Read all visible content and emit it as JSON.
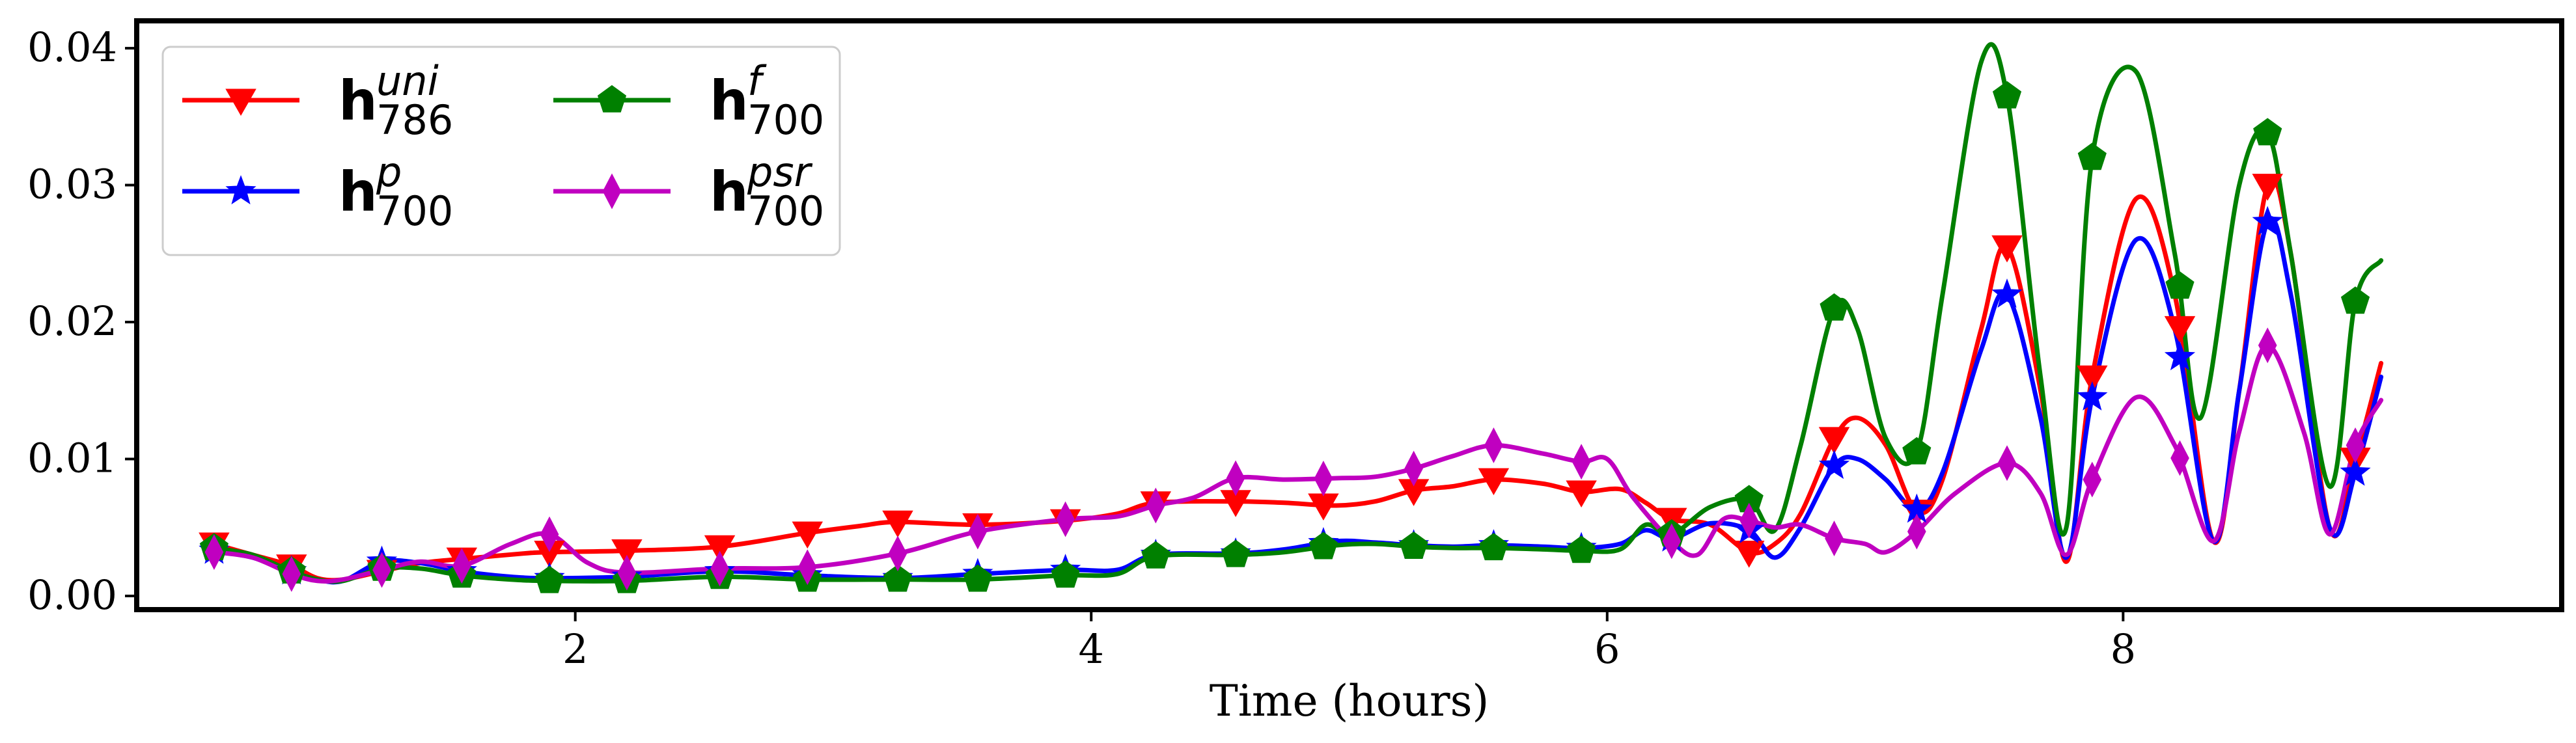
{
  "chart_data": {
    "type": "line",
    "title": "",
    "xlabel": "Time (hours)",
    "ylabel": "",
    "xlim": [
      0.3,
      9.7
    ],
    "ylim": [
      -0.001,
      0.042
    ],
    "xticks": [
      2,
      4,
      6,
      8
    ],
    "xtick_labels": [
      "2",
      "4",
      "6",
      "8"
    ],
    "yticks": [
      0.0,
      0.01,
      0.02,
      0.03,
      0.04
    ],
    "ytick_labels": [
      "0.00",
      "0.01",
      "0.02",
      "0.03",
      "0.04"
    ],
    "grid": false,
    "legend_position": "top-left",
    "legend_columns": 2,
    "series": [
      {
        "legend": {
          "main": "h",
          "sup": "uni",
          "sub": "786"
        },
        "color": "#ff0000",
        "marker": "triangle-down",
        "points": [
          [
            0.6,
            0.0038
          ],
          [
            0.75,
            0.003
          ],
          [
            0.9,
            0.0022
          ],
          [
            1.0,
            0.0013
          ],
          [
            1.1,
            0.0012
          ],
          [
            1.25,
            0.0018
          ],
          [
            1.4,
            0.0024
          ],
          [
            1.56,
            0.0027
          ],
          [
            1.8,
            0.0031
          ],
          [
            1.9,
            0.0032
          ],
          [
            2.2,
            0.0033
          ],
          [
            2.56,
            0.0036
          ],
          [
            2.9,
            0.0046
          ],
          [
            3.1,
            0.0051
          ],
          [
            3.25,
            0.0054
          ],
          [
            3.56,
            0.0052
          ],
          [
            3.9,
            0.0055
          ],
          [
            4.1,
            0.006
          ],
          [
            4.25,
            0.0068
          ],
          [
            4.56,
            0.0069
          ],
          [
            4.75,
            0.0068
          ],
          [
            4.95,
            0.0066
          ],
          [
            5.1,
            0.0069
          ],
          [
            5.25,
            0.0077
          ],
          [
            5.4,
            0.008
          ],
          [
            5.56,
            0.0085
          ],
          [
            5.75,
            0.0082
          ],
          [
            5.9,
            0.0076
          ],
          [
            6.05,
            0.0078
          ],
          [
            6.15,
            0.0068
          ],
          [
            6.25,
            0.0056
          ],
          [
            6.4,
            0.0052
          ],
          [
            6.55,
            0.0032
          ],
          [
            6.65,
            0.0038
          ],
          [
            6.75,
            0.006
          ],
          [
            6.88,
            0.0115
          ],
          [
            6.97,
            0.013
          ],
          [
            7.08,
            0.011
          ],
          [
            7.2,
            0.0062
          ],
          [
            7.3,
            0.0085
          ],
          [
            7.45,
            0.0195
          ],
          [
            7.55,
            0.0255
          ],
          [
            7.68,
            0.015
          ],
          [
            7.78,
            0.0025
          ],
          [
            7.88,
            0.016
          ],
          [
            8.05,
            0.029
          ],
          [
            8.2,
            0.022
          ],
          [
            8.35,
            0.004
          ],
          [
            8.45,
            0.015
          ],
          [
            8.56,
            0.03
          ],
          [
            8.65,
            0.025
          ],
          [
            8.8,
            0.005
          ],
          [
            8.9,
            0.01
          ],
          [
            9.0,
            0.017
          ]
        ]
      },
      {
        "legend": {
          "main": "h",
          "sup": "p",
          "sub": "700"
        },
        "color": "#0000ff",
        "marker": "star",
        "points": [
          [
            0.6,
            0.0033
          ],
          [
            0.75,
            0.0028
          ],
          [
            0.9,
            0.0018
          ],
          [
            1.0,
            0.0012
          ],
          [
            1.1,
            0.0011
          ],
          [
            1.25,
            0.0025
          ],
          [
            1.4,
            0.0024
          ],
          [
            1.56,
            0.0018
          ],
          [
            1.75,
            0.0014
          ],
          [
            1.9,
            0.0013
          ],
          [
            2.2,
            0.0014
          ],
          [
            2.56,
            0.0018
          ],
          [
            2.9,
            0.0015
          ],
          [
            3.25,
            0.0013
          ],
          [
            3.56,
            0.0016
          ],
          [
            3.9,
            0.0019
          ],
          [
            4.1,
            0.0019
          ],
          [
            4.25,
            0.003
          ],
          [
            4.56,
            0.0031
          ],
          [
            4.75,
            0.0034
          ],
          [
            4.95,
            0.004
          ],
          [
            5.1,
            0.0039
          ],
          [
            5.25,
            0.0037
          ],
          [
            5.4,
            0.0036
          ],
          [
            5.56,
            0.0037
          ],
          [
            5.75,
            0.0036
          ],
          [
            5.9,
            0.0035
          ],
          [
            6.05,
            0.0038
          ],
          [
            6.15,
            0.0048
          ],
          [
            6.25,
            0.0042
          ],
          [
            6.4,
            0.0053
          ],
          [
            6.55,
            0.0048
          ],
          [
            6.65,
            0.0028
          ],
          [
            6.75,
            0.005
          ],
          [
            6.88,
            0.0095
          ],
          [
            6.97,
            0.01
          ],
          [
            7.08,
            0.0085
          ],
          [
            7.2,
            0.0063
          ],
          [
            7.3,
            0.009
          ],
          [
            7.45,
            0.018
          ],
          [
            7.55,
            0.022
          ],
          [
            7.68,
            0.013
          ],
          [
            7.78,
            0.0028
          ],
          [
            7.88,
            0.0145
          ],
          [
            8.05,
            0.026
          ],
          [
            8.2,
            0.0195
          ],
          [
            8.35,
            0.004
          ],
          [
            8.45,
            0.015
          ],
          [
            8.56,
            0.0273
          ],
          [
            8.65,
            0.022
          ],
          [
            8.8,
            0.005
          ],
          [
            8.9,
            0.009
          ],
          [
            9.0,
            0.016
          ]
        ]
      },
      {
        "legend": {
          "main": "h",
          "sup": "f",
          "sub": "700"
        },
        "color": "#008000",
        "marker": "pentagon",
        "points": [
          [
            0.6,
            0.0035
          ],
          [
            0.75,
            0.003
          ],
          [
            0.9,
            0.0018
          ],
          [
            1.0,
            0.0012
          ],
          [
            1.1,
            0.0011
          ],
          [
            1.25,
            0.002
          ],
          [
            1.4,
            0.002
          ],
          [
            1.56,
            0.0015
          ],
          [
            1.75,
            0.0012
          ],
          [
            1.9,
            0.0011
          ],
          [
            2.2,
            0.0011
          ],
          [
            2.56,
            0.0014
          ],
          [
            2.9,
            0.0012
          ],
          [
            3.25,
            0.0012
          ],
          [
            3.56,
            0.0012
          ],
          [
            3.9,
            0.0015
          ],
          [
            4.1,
            0.0016
          ],
          [
            4.25,
            0.0029
          ],
          [
            4.56,
            0.003
          ],
          [
            4.75,
            0.0032
          ],
          [
            4.95,
            0.0037
          ],
          [
            5.1,
            0.0038
          ],
          [
            5.25,
            0.0036
          ],
          [
            5.4,
            0.0035
          ],
          [
            5.56,
            0.0035
          ],
          [
            5.75,
            0.0034
          ],
          [
            5.9,
            0.0033
          ],
          [
            6.05,
            0.0034
          ],
          [
            6.15,
            0.0052
          ],
          [
            6.25,
            0.0045
          ],
          [
            6.4,
            0.0065
          ],
          [
            6.55,
            0.007
          ],
          [
            6.65,
            0.0048
          ],
          [
            6.75,
            0.011
          ],
          [
            6.88,
            0.021
          ],
          [
            6.97,
            0.0195
          ],
          [
            7.08,
            0.0115
          ],
          [
            7.2,
            0.0105
          ],
          [
            7.3,
            0.022
          ],
          [
            7.45,
            0.039
          ],
          [
            7.55,
            0.0365
          ],
          [
            7.68,
            0.016
          ],
          [
            7.78,
            0.005
          ],
          [
            7.88,
            0.032
          ],
          [
            8.05,
            0.0383
          ],
          [
            8.2,
            0.025
          ],
          [
            8.3,
            0.013
          ],
          [
            8.45,
            0.03
          ],
          [
            8.56,
            0.0338
          ],
          [
            8.65,
            0.025
          ],
          [
            8.8,
            0.008
          ],
          [
            8.9,
            0.0215
          ],
          [
            9.0,
            0.0245
          ]
        ]
      },
      {
        "legend": {
          "main": "h",
          "sup": "psr",
          "sub": "700"
        },
        "color": "#c000c0",
        "marker": "thin-diamond",
        "points": [
          [
            0.6,
            0.0032
          ],
          [
            0.75,
            0.0028
          ],
          [
            0.9,
            0.0016
          ],
          [
            1.0,
            0.0011
          ],
          [
            1.1,
            0.0012
          ],
          [
            1.25,
            0.0019
          ],
          [
            1.4,
            0.0025
          ],
          [
            1.56,
            0.0022
          ],
          [
            1.75,
            0.0038
          ],
          [
            1.9,
            0.0045
          ],
          [
            2.05,
            0.0024
          ],
          [
            2.2,
            0.0017
          ],
          [
            2.56,
            0.002
          ],
          [
            2.9,
            0.0021
          ],
          [
            3.25,
            0.0031
          ],
          [
            3.56,
            0.0047
          ],
          [
            3.9,
            0.0056
          ],
          [
            4.1,
            0.0058
          ],
          [
            4.25,
            0.0066
          ],
          [
            4.4,
            0.0072
          ],
          [
            4.56,
            0.0086
          ],
          [
            4.75,
            0.0085
          ],
          [
            4.95,
            0.0086
          ],
          [
            5.1,
            0.0087
          ],
          [
            5.25,
            0.0093
          ],
          [
            5.4,
            0.0102
          ],
          [
            5.56,
            0.011
          ],
          [
            5.75,
            0.0104
          ],
          [
            5.9,
            0.0098
          ],
          [
            6.0,
            0.01
          ],
          [
            6.1,
            0.0072
          ],
          [
            6.25,
            0.004
          ],
          [
            6.35,
            0.003
          ],
          [
            6.45,
            0.0056
          ],
          [
            6.55,
            0.0055
          ],
          [
            6.65,
            0.005
          ],
          [
            6.75,
            0.0052
          ],
          [
            6.88,
            0.0042
          ],
          [
            7.0,
            0.0038
          ],
          [
            7.08,
            0.0032
          ],
          [
            7.2,
            0.0047
          ],
          [
            7.35,
            0.0075
          ],
          [
            7.55,
            0.0097
          ],
          [
            7.68,
            0.0075
          ],
          [
            7.78,
            0.003
          ],
          [
            7.88,
            0.0085
          ],
          [
            8.05,
            0.0145
          ],
          [
            8.2,
            0.011
          ],
          [
            8.35,
            0.004
          ],
          [
            8.45,
            0.012
          ],
          [
            8.56,
            0.0183
          ],
          [
            8.7,
            0.012
          ],
          [
            8.8,
            0.0045
          ],
          [
            8.9,
            0.011
          ],
          [
            9.0,
            0.0143
          ]
        ]
      }
    ]
  }
}
